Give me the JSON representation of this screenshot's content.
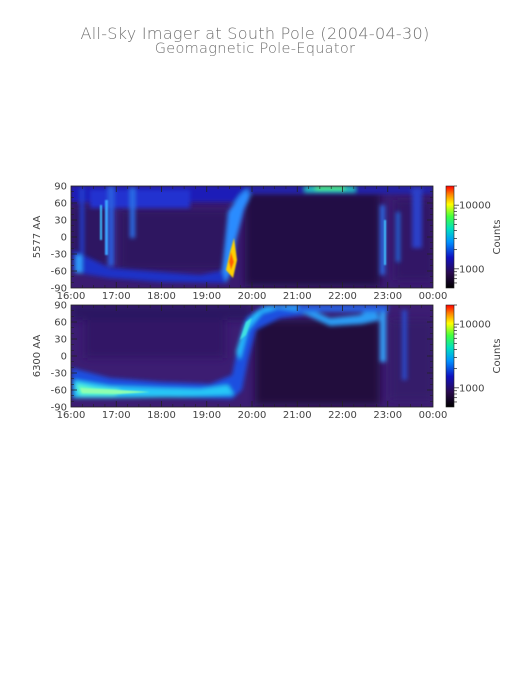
{
  "title": "All-Sky Imager at South Pole (2004-04-30)",
  "subtitle": "Geomagnetic Pole-Equator",
  "chart_data": [
    {
      "type": "heatmap",
      "ylabel": "5577 AA",
      "x_ticks": [
        "16:00",
        "17:00",
        "18:00",
        "19:00",
        "20:00",
        "21:00",
        "22:00",
        "23:00",
        "00:00"
      ],
      "xlim": [
        "16:00",
        "00:00"
      ],
      "y_ticks": [
        90,
        60,
        30,
        0,
        -30,
        -60,
        -90
      ],
      "ylim": [
        -90,
        90
      ],
      "colorbar": {
        "label": "Counts",
        "scale": "log",
        "ticks": [
          "10000",
          "1000"
        ]
      }
    },
    {
      "type": "heatmap",
      "ylabel": "6300 AA",
      "x_ticks": [
        "16:00",
        "17:00",
        "18:00",
        "19:00",
        "20:00",
        "21:00",
        "22:00",
        "23:00",
        "00:00"
      ],
      "xlim": [
        "16:00",
        "00:00"
      ],
      "y_ticks": [
        90,
        60,
        30,
        0,
        -30,
        -60,
        -90
      ],
      "ylim": [
        -90,
        90
      ],
      "colorbar": {
        "label": "Counts",
        "scale": "log",
        "ticks": [
          "10000",
          "1000"
        ]
      }
    }
  ]
}
